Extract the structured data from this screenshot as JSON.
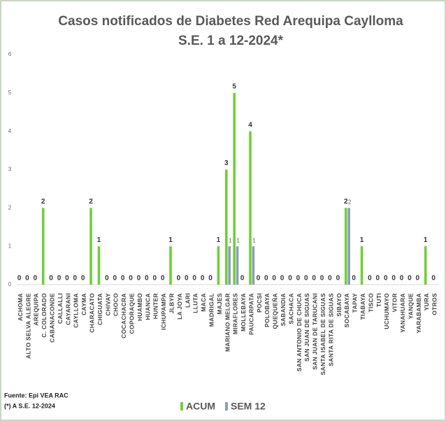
{
  "chart_data": {
    "type": "bar",
    "title": "Casos notificados de Diabetes  Red Arequipa Caylloma",
    "subtitle": "S.E. 1 a  12-2024*",
    "categories": [
      "ACHOMA",
      "ALTO SELVA ALEGRE",
      "AREQUIPA",
      "C. COLORADO",
      "CABANACONDE",
      "CALLALLI",
      "CAYARANI",
      "CAYLLOMA",
      "CAYMA",
      "CHARACATO",
      "CHIGUATA",
      "CHIVAY",
      "CHOCO",
      "COCACHACRA",
      "COPORAQUE",
      "HUAMBO",
      "HUANCA",
      "HUNTER",
      "ICHUPAMPA",
      "JLBYR",
      "LA JOYA",
      "LARI",
      "LLUTA",
      "MACA",
      "MADRIGAL",
      "MAJES",
      "MARIANO MELGAR",
      "MIRAFLORES",
      "MOLLEBAYA",
      "PAUCARPATA",
      "POCSI",
      "POLOBAYA",
      "QUEQUEÑA",
      "SABANDIA",
      "SACHACA",
      "SAN ANTONIO DE CHUCA",
      "SAN JUAN DE SIGUAS",
      "SAN JUAN DE TARUCANI",
      "SANTA ISABEL DE SIGUAS",
      "SANTA RITA DE SIGUAS",
      "SIBAYO",
      "SOCABAYA",
      "TAPAY",
      "TIABAYA",
      "TISCO",
      "TUTI",
      "UCHUMAYO",
      "VITOR",
      "YANAHUARA",
      "YANQUE",
      "YARABAMBA",
      "YURA",
      "OTROS"
    ],
    "series": [
      {
        "name": "ACUM",
        "color": "#6fcf3a",
        "values": [
          0,
          0,
          0,
          2,
          0,
          0,
          0,
          0,
          0,
          2,
          1,
          0,
          0,
          0,
          0,
          0,
          0,
          0,
          0,
          1,
          0,
          0,
          0,
          0,
          0,
          1,
          3,
          5,
          0,
          4,
          0,
          0,
          0,
          0,
          0,
          0,
          0,
          0,
          0,
          0,
          0,
          2,
          0,
          1,
          0,
          0,
          0,
          0,
          0,
          0,
          0,
          1,
          0
        ]
      },
      {
        "name": "SEM 12",
        "color": "#8e9db5",
        "values": [
          0,
          0,
          0,
          0,
          0,
          0,
          0,
          0,
          0,
          0,
          0,
          0,
          0,
          0,
          0,
          0,
          0,
          0,
          0,
          0,
          0,
          0,
          0,
          0,
          0,
          0,
          1,
          1,
          0,
          1,
          0,
          0,
          0,
          0,
          0,
          0,
          0,
          0,
          0,
          0,
          0,
          2,
          0,
          0,
          0,
          0,
          0,
          0,
          0,
          0,
          0,
          0,
          0
        ],
        "value_labels": [
          null,
          null,
          null,
          null,
          null,
          null,
          null,
          null,
          null,
          null,
          null,
          null,
          null,
          null,
          null,
          null,
          null,
          null,
          null,
          null,
          null,
          null,
          null,
          null,
          null,
          null,
          "1",
          "1",
          null,
          "1",
          null,
          null,
          null,
          null,
          null,
          null,
          null,
          null,
          null,
          null,
          null,
          "2",
          null,
          null,
          null,
          null,
          null,
          null,
          null,
          null,
          null,
          null,
          null
        ]
      }
    ],
    "ylim": [
      0,
      6
    ],
    "yticks": [
      0,
      1,
      2,
      3,
      4,
      5,
      6
    ],
    "grid": false,
    "legend": "bottom",
    "source": "Fuente: Epi VEA RAC",
    "note": "(*) A S.E. 12-2024"
  }
}
